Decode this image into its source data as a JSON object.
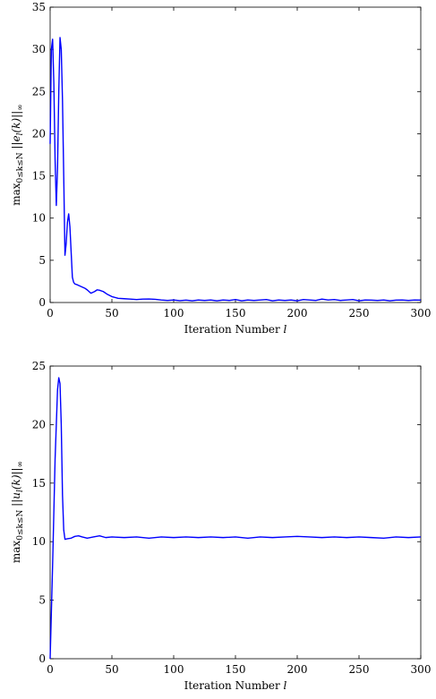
{
  "chart_data": [
    {
      "type": "line",
      "title": "",
      "xlabel": "Iteration Number",
      "xlabel_var": "l",
      "ylabel": "max",
      "ylabel_sub": "0≤k≤N",
      "ylabel_body": "||e",
      "ylabel_body_sub": "l",
      "ylabel_body_end": "(k)||",
      "ylabel_body_end_sub": "∞",
      "xlim": [
        0,
        300
      ],
      "ylim": [
        0,
        35
      ],
      "xticks": [
        0,
        50,
        100,
        150,
        200,
        250,
        300
      ],
      "yticks": [
        0,
        5,
        10,
        15,
        20,
        25,
        30,
        35
      ],
      "grid": false,
      "color": "#0000ff",
      "series": [
        {
          "x": [
            0,
            1,
            2,
            3,
            4,
            5,
            6,
            7,
            8,
            9,
            10,
            11,
            12,
            13,
            14,
            15,
            16,
            17,
            18,
            19,
            20,
            22,
            25,
            28,
            30,
            33,
            36,
            38,
            40,
            43,
            46,
            50,
            55,
            60,
            65,
            70,
            75,
            80,
            85,
            90,
            95,
            100,
            105,
            110,
            115,
            120,
            125,
            130,
            135,
            140,
            145,
            150,
            155,
            160,
            165,
            170,
            175,
            180,
            185,
            190,
            195,
            200,
            205,
            210,
            215,
            220,
            225,
            230,
            235,
            240,
            245,
            250,
            255,
            260,
            265,
            270,
            275,
            280,
            285,
            290,
            295,
            300
          ],
          "y": [
            18.8,
            30,
            31.2,
            26,
            17,
            11.5,
            16,
            25,
            31.4,
            30,
            24,
            15,
            5.6,
            7,
            9.5,
            10.5,
            9,
            6,
            3,
            2.4,
            2.2,
            2.1,
            1.9,
            1.7,
            1.5,
            1.1,
            1.3,
            1.5,
            1.45,
            1.3,
            1.0,
            0.7,
            0.5,
            0.45,
            0.4,
            0.35,
            0.4,
            0.42,
            0.38,
            0.3,
            0.25,
            0.3,
            0.22,
            0.28,
            0.2,
            0.3,
            0.25,
            0.3,
            0.2,
            0.3,
            0.25,
            0.35,
            0.2,
            0.3,
            0.25,
            0.3,
            0.35,
            0.2,
            0.3,
            0.25,
            0.3,
            0.2,
            0.35,
            0.3,
            0.25,
            0.4,
            0.3,
            0.35,
            0.25,
            0.3,
            0.35,
            0.2,
            0.3,
            0.28,
            0.25,
            0.3,
            0.2,
            0.28,
            0.3,
            0.25,
            0.3,
            0.28
          ]
        }
      ]
    },
    {
      "type": "line",
      "title": "",
      "xlabel": "Iteration Number",
      "xlabel_var": "l",
      "ylabel": "max",
      "ylabel_sub": "0≤k≤N",
      "ylabel_body": "||u",
      "ylabel_body_sub": "l",
      "ylabel_body_end": "(k)||",
      "ylabel_body_end_sub": "∞",
      "xlim": [
        0,
        300
      ],
      "ylim": [
        0,
        25
      ],
      "xticks": [
        0,
        50,
        100,
        150,
        200,
        250,
        300
      ],
      "yticks": [
        0,
        5,
        10,
        15,
        20,
        25
      ],
      "grid": false,
      "color": "#0000ff",
      "series": [
        {
          "x": [
            0,
            2,
            4,
            6,
            7,
            8,
            9,
            10,
            11,
            12,
            14,
            17,
            20,
            23,
            26,
            30,
            35,
            40,
            45,
            50,
            60,
            70,
            80,
            90,
            100,
            110,
            120,
            130,
            140,
            150,
            160,
            170,
            180,
            190,
            200,
            210,
            220,
            230,
            240,
            250,
            260,
            270,
            280,
            290,
            300
          ],
          "y": [
            0,
            8,
            17,
            23,
            24,
            23.5,
            20,
            14,
            11,
            10.2,
            10.25,
            10.3,
            10.45,
            10.5,
            10.4,
            10.3,
            10.4,
            10.5,
            10.35,
            10.4,
            10.35,
            10.4,
            10.3,
            10.4,
            10.35,
            10.4,
            10.35,
            10.4,
            10.35,
            10.4,
            10.3,
            10.4,
            10.35,
            10.4,
            10.45,
            10.4,
            10.35,
            10.4,
            10.35,
            10.4,
            10.35,
            10.3,
            10.4,
            10.35,
            10.4
          ]
        }
      ]
    }
  ]
}
